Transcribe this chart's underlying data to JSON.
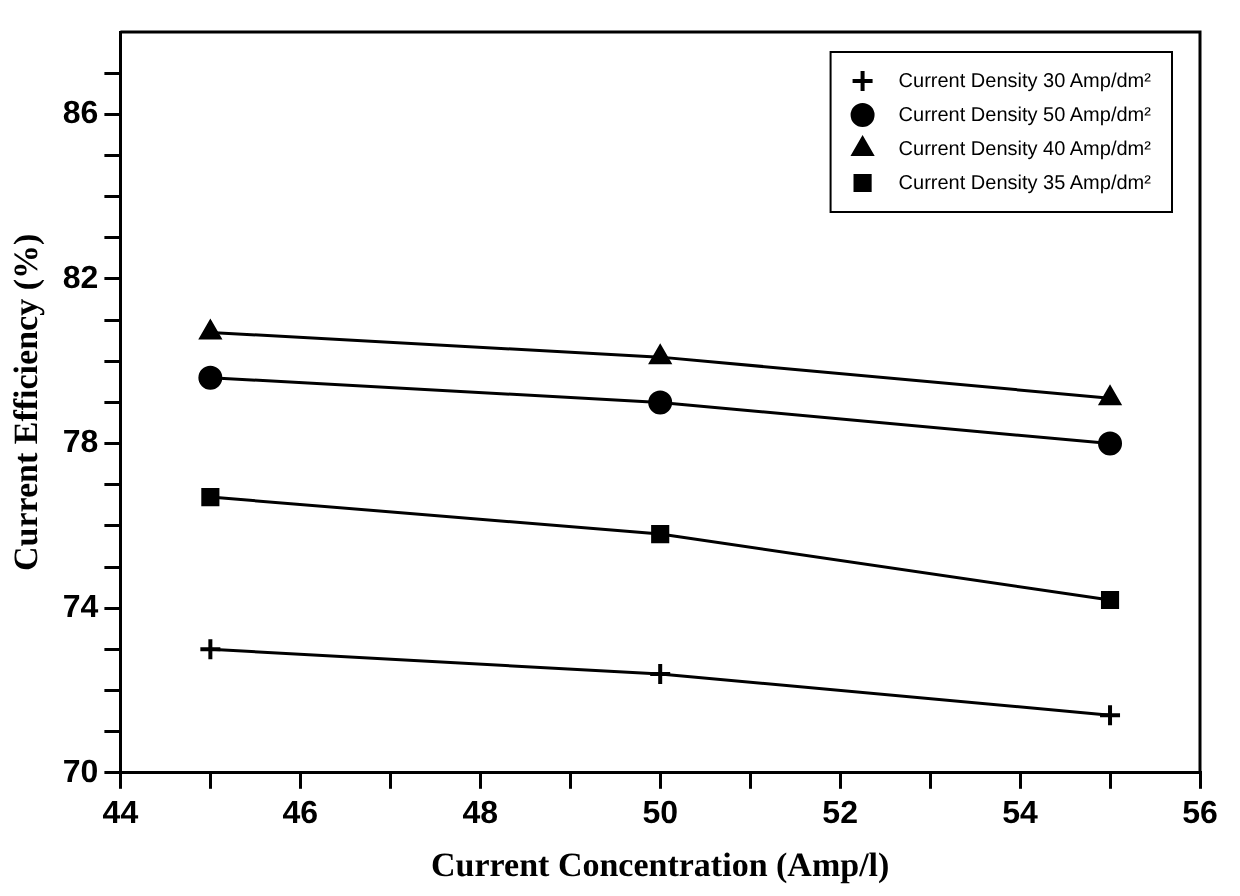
{
  "chart_data": {
    "type": "line",
    "xlabel": "Current Concentration (Amp/l)",
    "ylabel": "Current Efficiency (%)",
    "x": [
      45,
      50,
      55
    ],
    "series": [
      {
        "name": "Current Density 30 Amp/dm²",
        "color": "#000000",
        "marker": "cross",
        "values": [
          73.0,
          72.4,
          71.4
        ]
      },
      {
        "name": "Current Density 50 Amp/dm²",
        "color": "#000000",
        "marker": "circle",
        "values": [
          79.6,
          79.0,
          78.0
        ]
      },
      {
        "name": "Current Density 40 Amp/dm²",
        "color": "#000000",
        "marker": "triangle",
        "values": [
          80.7,
          80.1,
          79.1
        ]
      },
      {
        "name": "Current Density 35 Amp/dm²",
        "color": "#000000",
        "marker": "square",
        "values": [
          76.7,
          75.8,
          74.2
        ]
      }
    ],
    "xlim": [
      44,
      56
    ],
    "xticks": [
      44,
      {
        "value": 45,
        "label": null
      },
      46,
      {
        "value": 47,
        "label": null
      },
      48,
      {
        "value": 49,
        "label": null
      },
      50,
      {
        "value": 51,
        "label": null
      },
      52,
      {
        "value": 53,
        "label": null
      },
      54,
      {
        "value": 55,
        "label": null
      },
      56
    ],
    "ylim": [
      70,
      88
    ],
    "yticks": [
      70,
      {
        "value": 71,
        "label": null
      },
      {
        "value": 72,
        "label": null
      },
      {
        "value": 73,
        "label": null
      },
      74,
      {
        "value": 75,
        "label": null
      },
      {
        "value": 76,
        "label": null
      },
      {
        "value": 77,
        "label": null
      },
      78,
      {
        "value": 79,
        "label": null
      },
      {
        "value": 80,
        "label": null
      },
      {
        "value": 81,
        "label": null
      },
      82,
      {
        "value": 83,
        "label": null
      },
      {
        "value": 84,
        "label": null
      },
      {
        "value": 85,
        "label": null
      },
      86,
      {
        "value": 87,
        "label": null
      }
    ],
    "grid": false,
    "legend": "top right",
    "line_style": "solid"
  }
}
